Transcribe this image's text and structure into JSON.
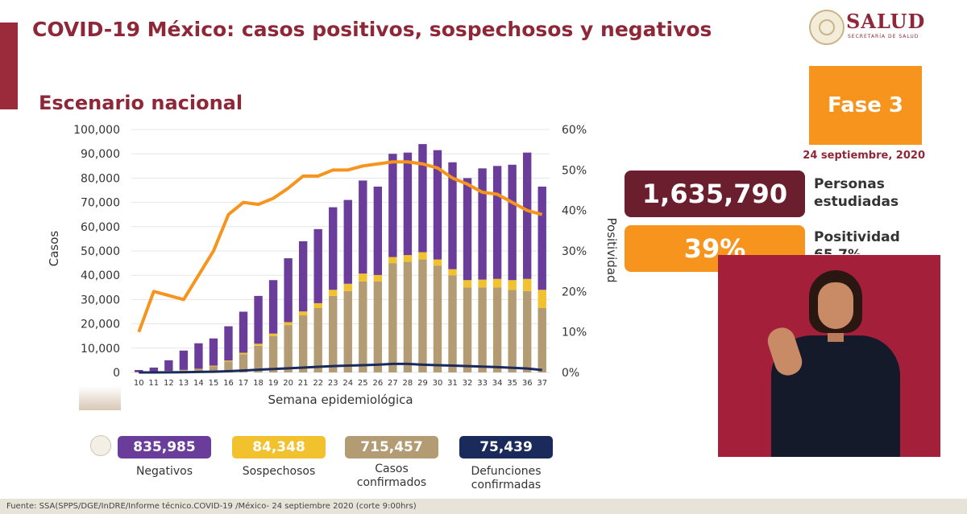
{
  "header": {
    "title": "COVID-19 México: casos positivos, sospechosos y negativos",
    "subtitle": "Escenario nacional"
  },
  "logo": {
    "text": "SALUD",
    "subtext": "SECRETARÍA DE SALUD"
  },
  "phase": {
    "label": "Fase 3",
    "date": "24 septiembre, 2020"
  },
  "kpis": {
    "persons_value": "1,635,790",
    "persons_label_1": "Personas",
    "persons_label_2": "estudiadas",
    "positivity_value": "39%",
    "positivity_label_1": "Positividad",
    "positivity_label_2": "65.7%"
  },
  "stats": [
    {
      "value": "835,985",
      "label_1": "Negativos",
      "label_2": "",
      "color": "#6a3d9a"
    },
    {
      "value": "84,348",
      "label_1": "Sospechosos",
      "label_2": "",
      "color": "#f2c12e"
    },
    {
      "value": "715,457",
      "label_1": "Casos",
      "label_2": "confirmados",
      "color": "#b39b74"
    },
    {
      "value": "75,439",
      "label_1": "Defunciones",
      "label_2": "confirmadas",
      "color": "#1a2a5a"
    }
  ],
  "footer": "Fuente: SSA(SPPS/DGE/InDRE/Informe técnico.COVID-19 /México- 24 septiembre 2020 (corte 9:00hrs)",
  "colors": {
    "confirmed": "#b39b74",
    "suspected": "#f2c12e",
    "negative": "#6a3d9a",
    "positivity": "#f7941d",
    "deaths": "#1a2a5a"
  },
  "chart_data": {
    "type": "bar",
    "stacked": true,
    "xlabel": "Semana epidemiológica",
    "ylabel": "Casos",
    "y2label": "Positividad",
    "ylim": [
      0,
      100000
    ],
    "y2lim": [
      0,
      60
    ],
    "yticks": [
      "0",
      "10,000",
      "20,000",
      "30,000",
      "40,000",
      "50,000",
      "60,000",
      "70,000",
      "80,000",
      "90,000",
      "100,000"
    ],
    "y2ticks": [
      "0%",
      "10%",
      "20%",
      "30%",
      "40%",
      "50%",
      "60%"
    ],
    "categories": [
      "10",
      "11",
      "12",
      "13",
      "14",
      "15",
      "16",
      "17",
      "18",
      "19",
      "20",
      "21",
      "22",
      "23",
      "24",
      "25",
      "26",
      "27",
      "28",
      "29",
      "30",
      "31",
      "32",
      "33",
      "34",
      "35",
      "36",
      "37"
    ],
    "series": [
      {
        "values": [
          100,
          250,
          500,
          900,
          1300,
          2500,
          4500,
          7500,
          11000,
          15000,
          19500,
          23500,
          26500,
          31500,
          33500,
          37500,
          37500,
          45000,
          45500,
          46500,
          44000,
          40000,
          35000,
          35000,
          35000,
          34000,
          33500,
          26500
        ]
      },
      {
        "values": [
          20,
          50,
          100,
          150,
          200,
          300,
          400,
          600,
          800,
          1000,
          1200,
          1600,
          2000,
          2500,
          3000,
          3200,
          2600,
          2500,
          2800,
          3000,
          2500,
          2500,
          3000,
          3200,
          3500,
          4000,
          5000,
          7500
        ]
      },
      {
        "values": [
          880,
          1700,
          4400,
          7950,
          10500,
          11200,
          14100,
          16900,
          19700,
          22000,
          26300,
          28900,
          30500,
          34000,
          34500,
          38300,
          36400,
          42500,
          42200,
          44500,
          45000,
          44000,
          42000,
          45800,
          46500,
          47500,
          52000,
          42500
        ]
      },
      {
        "values": [
          10,
          20,
          50,
          100,
          200,
          300,
          500,
          800,
          1100,
          1400,
          1700,
          2000,
          2300,
          2600,
          2800,
          3000,
          3200,
          3500,
          3500,
          3200,
          3000,
          2800,
          2600,
          2400,
          2200,
          1900,
          1600,
          1000
        ]
      },
      {
        "values": [
          10,
          20,
          19,
          18,
          24,
          30,
          39,
          42,
          41.5,
          43,
          45.5,
          48.5,
          48.5,
          50,
          50,
          51,
          51.5,
          52,
          52,
          51.5,
          50.5,
          48,
          46.5,
          44.5,
          44,
          42,
          40,
          39
        ]
      }
    ]
  }
}
